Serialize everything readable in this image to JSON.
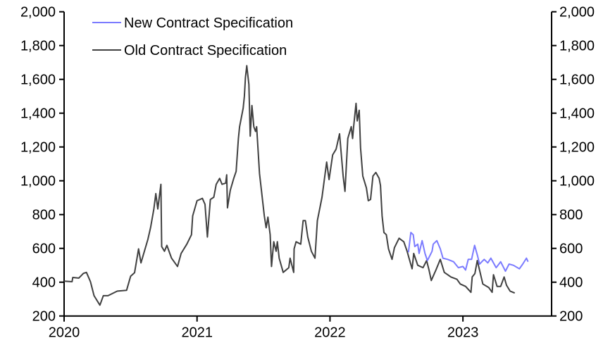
{
  "chart_data": {
    "type": "line",
    "title": "",
    "xlabel": "",
    "ylabel": "",
    "xlim": [
      2020,
      2023.667
    ],
    "ylim": [
      200,
      2000
    ],
    "grid": false,
    "legend_position": "top-left",
    "x_ticks": [
      2020,
      2021,
      2022,
      2023
    ],
    "x_tick_labels": [
      "2020",
      "2021",
      "2022",
      "2023"
    ],
    "y_ticks": [
      200,
      400,
      600,
      800,
      1000,
      1200,
      1400,
      1600,
      1800,
      2000
    ],
    "y_tick_labels_left": [
      "200",
      "400",
      "600",
      "800",
      "1,000",
      "1,200",
      "1,400",
      "1,600",
      "1,800",
      "2,000"
    ],
    "y_tick_labels_right": [
      "200",
      "400",
      "600",
      "800",
      "1,000",
      "1,200",
      "1,400",
      "1,600",
      "1,800",
      "2,000"
    ],
    "series": [
      {
        "name": "New Contract Specification",
        "color": "#7b7bff",
        "points": [
          [
            2022.59,
            577
          ],
          [
            2022.608,
            694
          ],
          [
            2022.626,
            681
          ],
          [
            2022.638,
            611
          ],
          [
            2022.66,
            625
          ],
          [
            2022.67,
            570
          ],
          [
            2022.693,
            646
          ],
          [
            2022.715,
            570
          ],
          [
            2022.733,
            528
          ],
          [
            2022.768,
            583
          ],
          [
            2022.777,
            625
          ],
          [
            2022.804,
            646
          ],
          [
            2022.83,
            597
          ],
          [
            2022.85,
            542
          ],
          [
            2022.885,
            535
          ],
          [
            2022.93,
            521
          ],
          [
            2022.966,
            486
          ],
          [
            2023.0,
            493
          ],
          [
            2023.02,
            472
          ],
          [
            2023.04,
            535
          ],
          [
            2023.065,
            535
          ],
          [
            2023.088,
            618
          ],
          [
            2023.11,
            556
          ],
          [
            2023.125,
            507
          ],
          [
            2023.16,
            535
          ],
          [
            2023.187,
            514
          ],
          [
            2023.21,
            542
          ],
          [
            2023.25,
            486
          ],
          [
            2023.284,
            521
          ],
          [
            2023.32,
            465
          ],
          [
            2023.347,
            507
          ],
          [
            2023.38,
            500
          ],
          [
            2023.425,
            479
          ],
          [
            2023.45,
            507
          ],
          [
            2023.478,
            542
          ],
          [
            2023.49,
            521
          ]
        ]
      },
      {
        "name": "Old Contract Specification",
        "color": "#404040",
        "points": [
          [
            2020.0,
            406
          ],
          [
            2020.06,
            403
          ],
          [
            2020.065,
            428
          ],
          [
            2020.11,
            424
          ],
          [
            2020.145,
            452
          ],
          [
            2020.168,
            458
          ],
          [
            2020.198,
            403
          ],
          [
            2020.225,
            320
          ],
          [
            2020.269,
            264
          ],
          [
            2020.295,
            320
          ],
          [
            2020.33,
            320
          ],
          [
            2020.4,
            347
          ],
          [
            2020.47,
            352
          ],
          [
            2020.5,
            435
          ],
          [
            2020.53,
            456
          ],
          [
            2020.56,
            597
          ],
          [
            2020.578,
            514
          ],
          [
            2020.63,
            653
          ],
          [
            2020.65,
            722
          ],
          [
            2020.675,
            833
          ],
          [
            2020.69,
            924
          ],
          [
            2020.705,
            833
          ],
          [
            2020.728,
            979
          ],
          [
            2020.734,
            611
          ],
          [
            2020.755,
            583
          ],
          [
            2020.773,
            618
          ],
          [
            2020.808,
            542
          ],
          [
            2020.853,
            493
          ],
          [
            2020.88,
            570
          ],
          [
            2020.923,
            625
          ],
          [
            2020.958,
            681
          ],
          [
            2020.967,
            792
          ],
          [
            2021.0,
            882
          ],
          [
            2021.04,
            896
          ],
          [
            2021.06,
            861
          ],
          [
            2021.078,
            667
          ],
          [
            2021.1,
            889
          ],
          [
            2021.126,
            903
          ],
          [
            2021.144,
            979
          ],
          [
            2021.17,
            1014
          ],
          [
            2021.188,
            979
          ],
          [
            2021.215,
            986
          ],
          [
            2021.223,
            1035
          ],
          [
            2021.229,
            840
          ],
          [
            2021.25,
            944
          ],
          [
            2021.276,
            1014
          ],
          [
            2021.294,
            1056
          ],
          [
            2021.311,
            1250
          ],
          [
            2021.32,
            1320
          ],
          [
            2021.347,
            1430
          ],
          [
            2021.356,
            1500
          ],
          [
            2021.364,
            1611
          ],
          [
            2021.374,
            1681
          ],
          [
            2021.382,
            1625
          ],
          [
            2021.39,
            1570
          ],
          [
            2021.4,
            1264
          ],
          [
            2021.413,
            1445
          ],
          [
            2021.427,
            1320
          ],
          [
            2021.44,
            1292
          ],
          [
            2021.448,
            1320
          ],
          [
            2021.47,
            1042
          ],
          [
            2021.49,
            903
          ],
          [
            2021.506,
            792
          ],
          [
            2021.52,
            722
          ],
          [
            2021.533,
            785
          ],
          [
            2021.55,
            681
          ],
          [
            2021.56,
            493
          ],
          [
            2021.577,
            639
          ],
          [
            2021.595,
            583
          ],
          [
            2021.604,
            639
          ],
          [
            2021.618,
            542
          ],
          [
            2021.648,
            458
          ],
          [
            2021.69,
            486
          ],
          [
            2021.7,
            542
          ],
          [
            2021.727,
            458
          ],
          [
            2021.73,
            597
          ],
          [
            2021.745,
            639
          ],
          [
            2021.78,
            625
          ],
          [
            2021.798,
            764
          ],
          [
            2021.815,
            764
          ],
          [
            2021.833,
            667
          ],
          [
            2021.86,
            583
          ],
          [
            2021.887,
            542
          ],
          [
            2021.905,
            764
          ],
          [
            2021.94,
            903
          ],
          [
            2021.975,
            1111
          ],
          [
            2021.993,
            1007
          ],
          [
            2022.02,
            1153
          ],
          [
            2022.046,
            1187
          ],
          [
            2022.072,
            1278
          ],
          [
            2022.099,
            1028
          ],
          [
            2022.113,
            937
          ],
          [
            2022.134,
            1250
          ],
          [
            2022.16,
            1320
          ],
          [
            2022.17,
            1250
          ],
          [
            2022.178,
            1320
          ],
          [
            2022.196,
            1458
          ],
          [
            2022.205,
            1354
          ],
          [
            2022.22,
            1417
          ],
          [
            2022.23,
            1195
          ],
          [
            2022.247,
            1028
          ],
          [
            2022.274,
            958
          ],
          [
            2022.288,
            882
          ],
          [
            2022.305,
            889
          ],
          [
            2022.323,
            1028
          ],
          [
            2022.345,
            1049
          ],
          [
            2022.37,
            1014
          ],
          [
            2022.38,
            972
          ],
          [
            2022.392,
            792
          ],
          [
            2022.406,
            694
          ],
          [
            2022.424,
            681
          ],
          [
            2022.44,
            597
          ],
          [
            2022.467,
            535
          ],
          [
            2022.485,
            604
          ],
          [
            2022.52,
            660
          ],
          [
            2022.555,
            639
          ],
          [
            2022.58,
            583
          ],
          [
            2022.6,
            528
          ],
          [
            2022.618,
            479
          ],
          [
            2022.63,
            570
          ],
          [
            2022.66,
            500
          ],
          [
            2022.7,
            486
          ],
          [
            2022.727,
            528
          ],
          [
            2022.745,
            472
          ],
          [
            2022.762,
            410
          ],
          [
            2022.797,
            472
          ],
          [
            2022.83,
            535
          ],
          [
            2022.86,
            458
          ],
          [
            2022.91,
            431
          ],
          [
            2022.955,
            417
          ],
          [
            2022.98,
            389
          ],
          [
            2023.02,
            375
          ],
          [
            2023.06,
            340
          ],
          [
            2023.07,
            431
          ],
          [
            2023.09,
            451
          ],
          [
            2023.108,
            528
          ],
          [
            2023.125,
            472
          ],
          [
            2023.15,
            389
          ],
          [
            2023.195,
            368
          ],
          [
            2023.22,
            340
          ],
          [
            2023.23,
            444
          ],
          [
            2023.257,
            375
          ],
          [
            2023.284,
            375
          ],
          [
            2023.31,
            431
          ],
          [
            2023.328,
            382
          ],
          [
            2023.355,
            347
          ],
          [
            2023.39,
            336
          ]
        ]
      }
    ]
  }
}
